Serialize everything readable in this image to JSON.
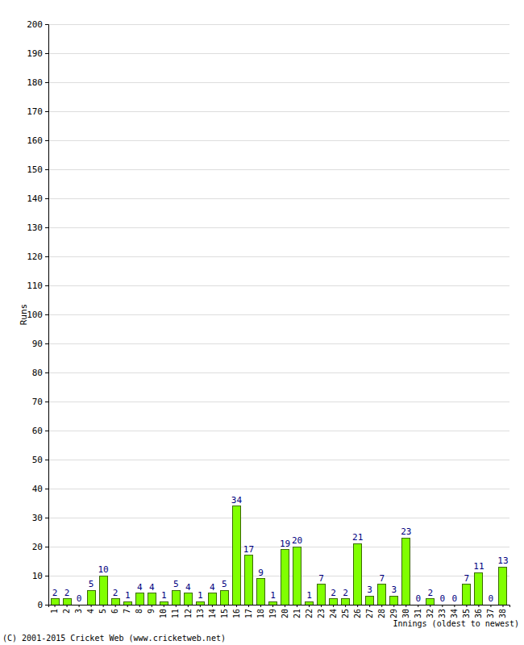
{
  "chart_data": {
    "type": "bar",
    "x_label": "Innings (oldest to newest)",
    "y_label": "Runs",
    "annotations": [
      "(C) 2001-2015 Cricket Web (www.cricketweb.net)"
    ],
    "categories": [
      "1",
      "2",
      "3",
      "4",
      "5",
      "6",
      "7",
      "8",
      "9",
      "10",
      "11",
      "12",
      "13",
      "14",
      "15",
      "16",
      "17",
      "18",
      "19",
      "20",
      "21",
      "22",
      "23",
      "24",
      "25",
      "26",
      "27",
      "28",
      "29",
      "30",
      "31",
      "32",
      "33",
      "34",
      "35",
      "36",
      "37",
      "38"
    ],
    "values": [
      2,
      2,
      0,
      5,
      10,
      2,
      1,
      4,
      4,
      1,
      5,
      4,
      1,
      4,
      5,
      34,
      17,
      9,
      1,
      19,
      20,
      1,
      7,
      2,
      2,
      21,
      3,
      7,
      3,
      23,
      0,
      2,
      0,
      0,
      7,
      11,
      0,
      13
    ],
    "color": "#80ff00",
    "ylim": [
      0,
      200
    ],
    "yticks": [
      0,
      10,
      20,
      30,
      40,
      50,
      60,
      70,
      80,
      90,
      100,
      110,
      120,
      130,
      140,
      150,
      160,
      170,
      180,
      190,
      200
    ],
    "grid": true,
    "data_labels": true
  }
}
